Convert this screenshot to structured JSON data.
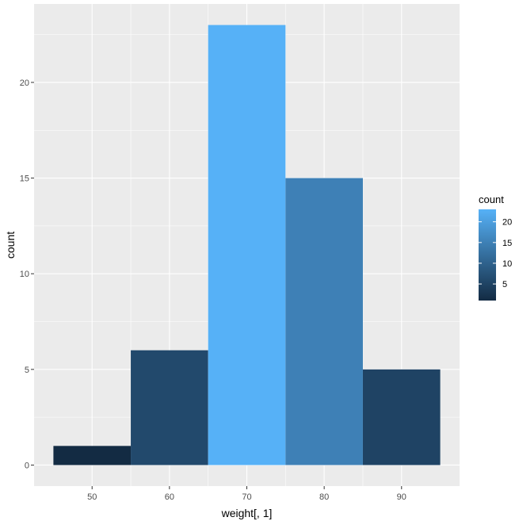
{
  "chart_data": {
    "type": "bar",
    "subtype": "histogram",
    "xlabel": "weight[, 1]",
    "ylabel": "count",
    "bins": [
      {
        "x_min": 45,
        "x_max": 55,
        "count": 1
      },
      {
        "x_min": 55,
        "x_max": 65,
        "count": 6
      },
      {
        "x_min": 65,
        "x_max": 75,
        "count": 23
      },
      {
        "x_min": 75,
        "x_max": 85,
        "count": 15
      },
      {
        "x_min": 85,
        "x_max": 95,
        "count": 5
      }
    ],
    "xlim": [
      42.5,
      97.5
    ],
    "ylim": [
      -1.1,
      24.1
    ],
    "x_ticks": [
      50,
      60,
      70,
      80,
      90
    ],
    "x_tick_labels": [
      "50",
      "60",
      "70",
      "80",
      "90"
    ],
    "y_ticks": [
      0,
      5,
      10,
      15,
      20
    ],
    "y_tick_labels": [
      "0",
      "5",
      "10",
      "15",
      "20"
    ],
    "grid": true,
    "panel_background": "#ebebeb",
    "grid_color": "#ffffff",
    "legend": {
      "title": "count",
      "placement": "right",
      "type": "colorbar",
      "range": [
        1,
        23
      ],
      "low_color": "#132b43",
      "high_color": "#56b1f7",
      "ticks": [
        5,
        10,
        15,
        20
      ],
      "tick_labels": [
        "5",
        "10",
        "15",
        "20"
      ]
    }
  }
}
